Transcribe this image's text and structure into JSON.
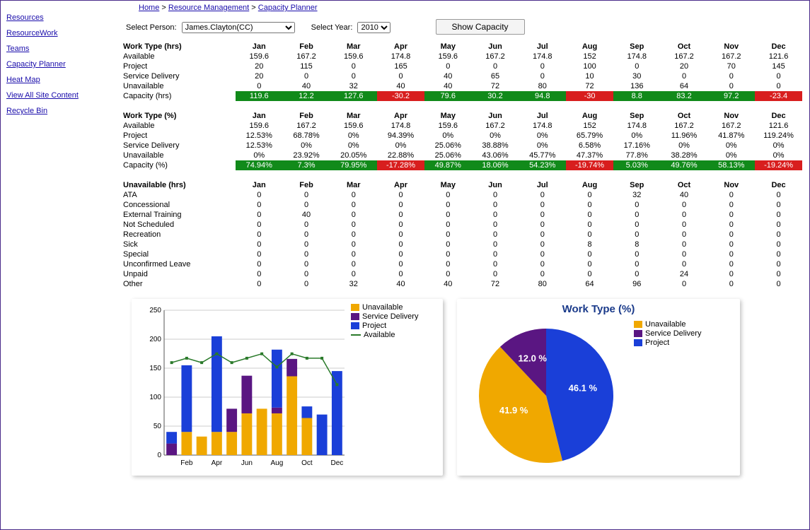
{
  "breadcrumb": [
    {
      "label": "Home"
    },
    {
      "label": "Resource Management"
    },
    {
      "label": "Capacity Planner"
    }
  ],
  "sidebar": {
    "items": [
      {
        "label": "Resources"
      },
      {
        "label": "ResourceWork"
      },
      {
        "label": "Teams"
      },
      {
        "label": "Capacity Planner"
      },
      {
        "label": "Heat Map"
      },
      {
        "label": "View All Site Content"
      },
      {
        "label": "Recycle Bin"
      }
    ]
  },
  "controls": {
    "person_label": "Select Person:",
    "person_value": "James.Clayton(CC)",
    "year_label": "Select Year:",
    "year_value": "2010",
    "button_label": "Show Capacity"
  },
  "months": [
    "Jan",
    "Feb",
    "Mar",
    "Apr",
    "May",
    "Jun",
    "Jul",
    "Aug",
    "Sep",
    "Oct",
    "Nov",
    "Dec"
  ],
  "colors": {
    "pos": "#118a1a",
    "neg": "#d81e1e",
    "unavail": "#f0a800",
    "svc": "#5a1682",
    "proj": "#1a3fd8",
    "avail": "#2a7a2a",
    "grid": "#ccc",
    "axis": "#555"
  },
  "table1": {
    "header": "Work Type (hrs)",
    "rows": [
      {
        "label": "Available",
        "v": [
          159.6,
          167.2,
          159.6,
          174.8,
          159.6,
          167.2,
          174.8,
          152,
          174.8,
          167.2,
          167.2,
          121.6
        ]
      },
      {
        "label": "Project",
        "v": [
          20,
          115,
          0,
          165,
          0,
          0,
          0,
          100,
          0,
          20,
          70,
          145
        ]
      },
      {
        "label": "Service Delivery",
        "v": [
          20,
          0,
          0,
          0,
          40,
          65,
          0,
          10,
          30,
          0,
          0,
          0
        ]
      },
      {
        "label": "Unavailable",
        "v": [
          0,
          40,
          32,
          40,
          40,
          72,
          80,
          72,
          136,
          64,
          0,
          0
        ]
      }
    ],
    "cap": {
      "label": "Capacity (hrs)",
      "v": [
        119.6,
        12.2,
        127.6,
        -30.2,
        79.6,
        30.2,
        94.8,
        -30,
        8.8,
        83.2,
        97.2,
        -23.4
      ]
    }
  },
  "table2": {
    "header": "Work Type (%)",
    "rows": [
      {
        "label": "Available",
        "v": [
          "159.6",
          "167.2",
          "159.6",
          "174.8",
          "159.6",
          "167.2",
          "174.8",
          "152",
          "174.8",
          "167.2",
          "167.2",
          "121.6"
        ]
      },
      {
        "label": "Project",
        "v": [
          "12.53%",
          "68.78%",
          "0%",
          "94.39%",
          "0%",
          "0%",
          "0%",
          "65.79%",
          "0%",
          "11.96%",
          "41.87%",
          "119.24%"
        ]
      },
      {
        "label": "Service Delivery",
        "v": [
          "12.53%",
          "0%",
          "0%",
          "0%",
          "25.06%",
          "38.88%",
          "0%",
          "6.58%",
          "17.16%",
          "0%",
          "0%",
          "0%"
        ]
      },
      {
        "label": "Unavailable",
        "v": [
          "0%",
          "23.92%",
          "20.05%",
          "22.88%",
          "25.06%",
          "43.06%",
          "45.77%",
          "47.37%",
          "77.8%",
          "38.28%",
          "0%",
          "0%"
        ]
      }
    ],
    "cap": {
      "label": "Capacity (%)",
      "v": [
        "74.94%",
        "7.3%",
        "79.95%",
        "-17.28%",
        "49.87%",
        "18.06%",
        "54.23%",
        "-19.74%",
        "5.03%",
        "49.76%",
        "58.13%",
        "-19.24%"
      ],
      "neg": [
        false,
        false,
        false,
        true,
        false,
        false,
        false,
        true,
        false,
        false,
        false,
        true
      ]
    }
  },
  "table3": {
    "header": "Unavailable (hrs)",
    "rows": [
      {
        "label": "ATA",
        "v": [
          0,
          0,
          0,
          0,
          0,
          0,
          0,
          0,
          32,
          40,
          0,
          0
        ]
      },
      {
        "label": "Concessional",
        "v": [
          0,
          0,
          0,
          0,
          0,
          0,
          0,
          0,
          0,
          0,
          0,
          0
        ]
      },
      {
        "label": "External Training",
        "v": [
          0,
          40,
          0,
          0,
          0,
          0,
          0,
          0,
          0,
          0,
          0,
          0
        ]
      },
      {
        "label": "Not Scheduled",
        "v": [
          0,
          0,
          0,
          0,
          0,
          0,
          0,
          0,
          0,
          0,
          0,
          0
        ]
      },
      {
        "label": "Recreation",
        "v": [
          0,
          0,
          0,
          0,
          0,
          0,
          0,
          0,
          0,
          0,
          0,
          0
        ]
      },
      {
        "label": "Sick",
        "v": [
          0,
          0,
          0,
          0,
          0,
          0,
          0,
          8,
          8,
          0,
          0,
          0
        ]
      },
      {
        "label": "Special",
        "v": [
          0,
          0,
          0,
          0,
          0,
          0,
          0,
          0,
          0,
          0,
          0,
          0
        ]
      },
      {
        "label": "Unconfirmed Leave",
        "v": [
          0,
          0,
          0,
          0,
          0,
          0,
          0,
          0,
          0,
          0,
          0,
          0
        ]
      },
      {
        "label": "Unpaid",
        "v": [
          0,
          0,
          0,
          0,
          0,
          0,
          0,
          0,
          0,
          24,
          0,
          0
        ]
      },
      {
        "label": "Other",
        "v": [
          0,
          0,
          32,
          40,
          40,
          72,
          80,
          64,
          96,
          0,
          0,
          0
        ]
      }
    ]
  },
  "barchart": {
    "ymax": 250,
    "ytick": 50,
    "xlabels": [
      "",
      "Feb",
      "",
      "Apr",
      "",
      "Jun",
      "",
      "Aug",
      "",
      "Oct",
      "",
      "Dec"
    ],
    "unavail": [
      0,
      40,
      32,
      40,
      40,
      72,
      80,
      72,
      136,
      64,
      0,
      0
    ],
    "svc": [
      20,
      0,
      0,
      0,
      40,
      65,
      0,
      10,
      30,
      0,
      0,
      0
    ],
    "proj": [
      20,
      115,
      0,
      165,
      0,
      0,
      0,
      100,
      0,
      20,
      70,
      145
    ],
    "avail": [
      159.6,
      167.2,
      159.6,
      174.8,
      159.6,
      167.2,
      174.8,
      152,
      174.8,
      167.2,
      167.2,
      121.6
    ],
    "legend": [
      {
        "c": "unavail",
        "t": "Unavailable"
      },
      {
        "c": "svc",
        "t": "Service Delivery"
      },
      {
        "c": "proj",
        "t": "Project"
      },
      {
        "c": "avail",
        "t": "Available",
        "line": true
      }
    ]
  },
  "pie": {
    "title": "Work Type (%)",
    "slices": [
      {
        "label": "Project",
        "pct": 46.1,
        "color": "#1a3fd8"
      },
      {
        "label": "Unavailable",
        "pct": 41.9,
        "color": "#f0a800"
      },
      {
        "label": "Service Delivery",
        "pct": 12.0,
        "color": "#5a1682"
      }
    ],
    "legend": [
      {
        "c": "unavail",
        "t": "Unavailable"
      },
      {
        "c": "svc",
        "t": "Service Delivery"
      },
      {
        "c": "proj",
        "t": "Project"
      }
    ]
  }
}
